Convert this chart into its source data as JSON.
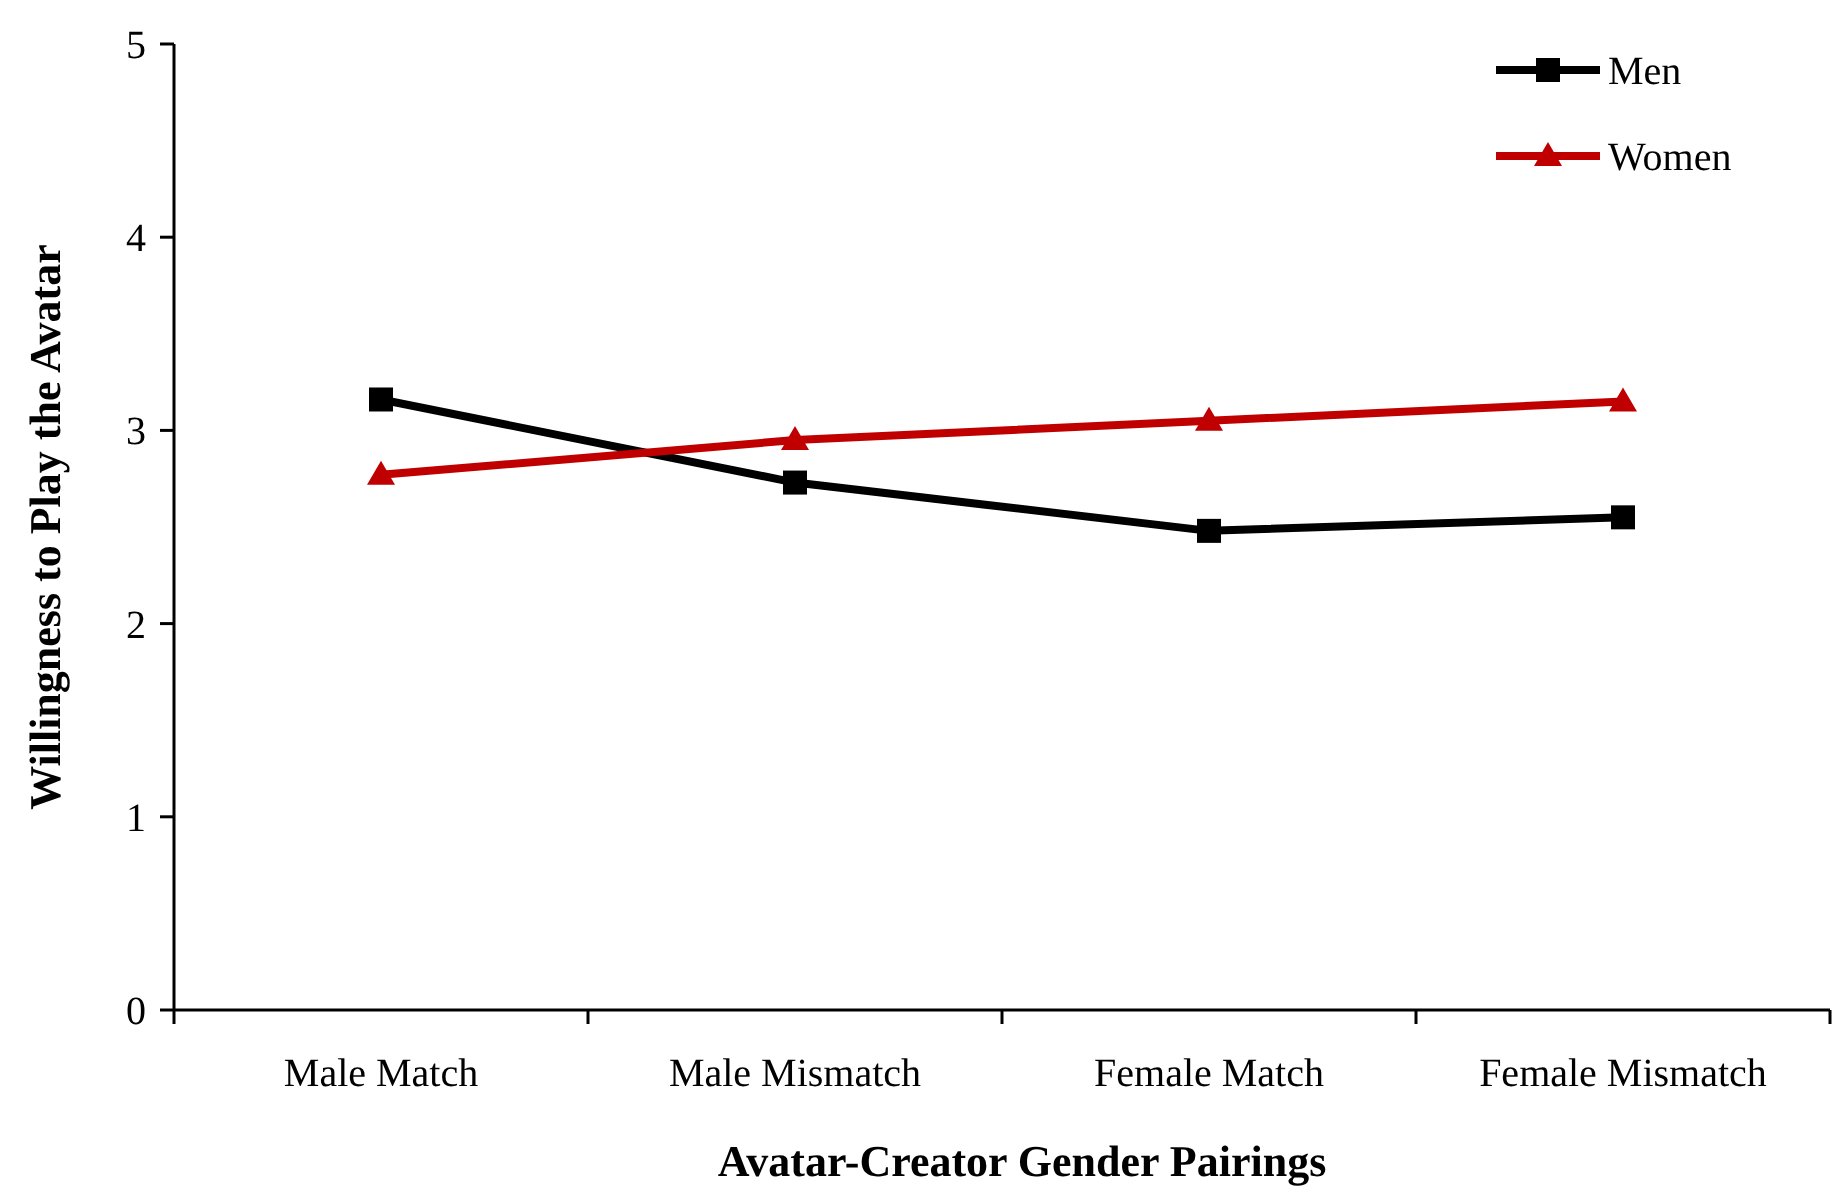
{
  "chart_data": {
    "type": "line",
    "xlabel": "Avatar-Creator Gender Pairings",
    "ylabel": "Willingness to Play the Avatar",
    "categories": [
      "Male Match",
      "Male Mismatch",
      "Female Match",
      "Female Mismatch"
    ],
    "series": [
      {
        "name": "Men",
        "color": "#000000",
        "marker": "square",
        "values": [
          3.16,
          2.73,
          2.48,
          2.55
        ]
      },
      {
        "name": "Women",
        "color": "#c00000",
        "marker": "triangle",
        "values": [
          2.77,
          2.95,
          3.05,
          3.15
        ]
      }
    ],
    "ylim": [
      0,
      5
    ],
    "yticks": [
      0,
      1,
      2,
      3,
      4,
      5
    ],
    "grid": false,
    "legend": "top right",
    "line_style": "solid"
  }
}
